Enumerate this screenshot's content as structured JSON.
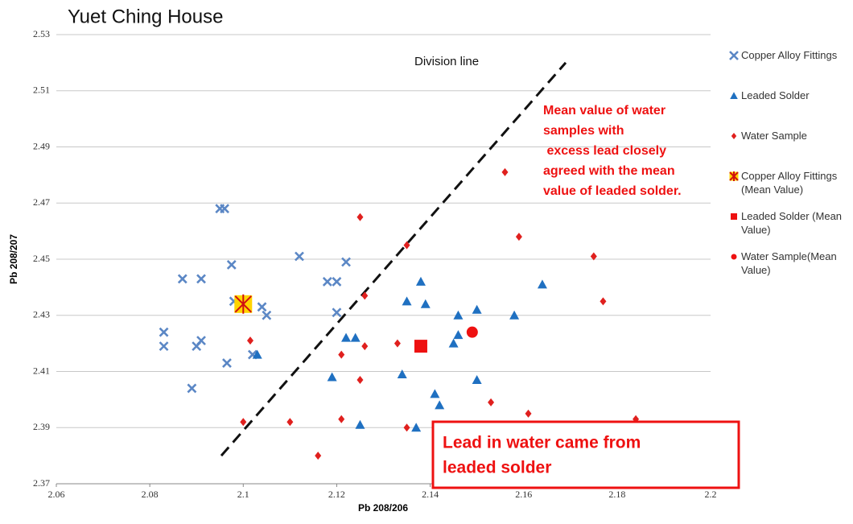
{
  "chart_data": {
    "type": "scatter",
    "title": "Yuet Ching House",
    "x_label": "Pb 208/206",
    "y_label": "Pb 208/207",
    "xlim": [
      2.06,
      2.2
    ],
    "ylim": [
      2.37,
      2.53
    ],
    "xticks": [
      2.06,
      2.08,
      2.1,
      2.12,
      2.14,
      2.16,
      2.18,
      2.2
    ],
    "yticks": [
      2.37,
      2.39,
      2.41,
      2.43,
      2.45,
      2.47,
      2.49,
      2.51,
      2.53
    ],
    "grid": true,
    "legend": "right",
    "series": [
      {
        "name": "Copper Alloy Fittings",
        "color": "#5b87c5",
        "marker": "x",
        "x": [
          2.095,
          2.096,
          2.0975,
          2.087,
          2.091,
          2.083,
          2.083,
          2.09,
          2.091,
          2.089,
          2.0965,
          2.098,
          2.104,
          2.105,
          2.102,
          2.112,
          2.118,
          2.12,
          2.122,
          2.12
        ],
        "y": [
          2.468,
          2.468,
          2.448,
          2.443,
          2.443,
          2.424,
          2.419,
          2.419,
          2.421,
          2.404,
          2.413,
          2.435,
          2.433,
          2.43,
          2.416,
          2.451,
          2.442,
          2.442,
          2.449,
          2.431
        ]
      },
      {
        "name": "Leaded Solder",
        "color": "#1f70c1",
        "marker": "triangle",
        "x": [
          2.103,
          2.119,
          2.122,
          2.124,
          2.125,
          2.134,
          2.135,
          2.138,
          2.139,
          2.141,
          2.142,
          2.137,
          2.145,
          2.146,
          2.146,
          2.15,
          2.15,
          2.158,
          2.164
        ],
        "y": [
          2.416,
          2.408,
          2.422,
          2.422,
          2.391,
          2.409,
          2.435,
          2.442,
          2.434,
          2.402,
          2.398,
          2.39,
          2.42,
          2.423,
          2.43,
          2.432,
          2.407,
          2.43,
          2.441
        ]
      },
      {
        "name": "Water Sample",
        "color": "#e0201e",
        "marker": "diamond",
        "x": [
          2.1,
          2.1015,
          2.11,
          2.116,
          2.121,
          2.121,
          2.125,
          2.125,
          2.126,
          2.126,
          2.133,
          2.135,
          2.135,
          2.153,
          2.156,
          2.159,
          2.161,
          2.175,
          2.177,
          2.184
        ],
        "y": [
          2.392,
          2.421,
          2.392,
          2.38,
          2.393,
          2.416,
          2.465,
          2.407,
          2.419,
          2.437,
          2.42,
          2.39,
          2.455,
          2.399,
          2.481,
          2.458,
          2.395,
          2.451,
          2.435,
          2.393
        ]
      },
      {
        "name": "Copper Alloy Fittings (Mean Value)",
        "color": "#ffd400",
        "marker": "star",
        "x": [
          2.1
        ],
        "y": [
          2.434
        ]
      },
      {
        "name": "Leaded Solder (Mean Value)",
        "color": "#ee1111",
        "marker": "square",
        "x": [
          2.138
        ],
        "y": [
          2.419
        ]
      },
      {
        "name": "Water Sample(Mean Value)",
        "color": "#ee1111",
        "marker": "circle",
        "x": [
          2.149
        ],
        "y": [
          2.424
        ]
      }
    ],
    "division_line": {
      "label": "Division line",
      "x": [
        2.0953,
        2.169
      ],
      "y": [
        2.38,
        2.52
      ]
    },
    "annotation": [
      "Mean value of water",
      "samples with",
      " excess lead closely",
      "agreed with the mean",
      "value of leaded solder."
    ],
    "callout": [
      "Lead in water came from",
      "leaded solder"
    ]
  }
}
